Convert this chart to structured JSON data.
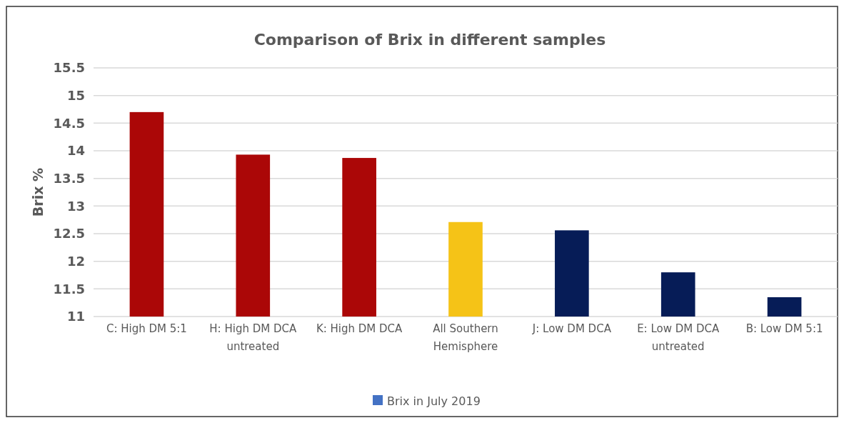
{
  "chart_data": {
    "type": "bar",
    "title": "Comparison of Brix in different samples",
    "ylabel": "Brix %",
    "categories": [
      "C: High DM 5:1",
      "H: High DM DCA untreated",
      "K: High DM DCA",
      "All Southern Hemisphere",
      "J: Low DM DCA",
      "E: Low DM DCA untreated",
      "B: Low DM 5:1"
    ],
    "series": [
      {
        "name": "Brix in July 2019",
        "color": "#4472c4",
        "colors": [
          "#ab0707",
          "#ab0707",
          "#ab0707",
          "#f5c317",
          "#061c57",
          "#061c57",
          "#061c57"
        ],
        "values": [
          14.7,
          13.93,
          13.87,
          12.71,
          12.56,
          11.8,
          11.35
        ]
      }
    ],
    "ylim": [
      11,
      15.5
    ],
    "yticks": [
      11,
      11.5,
      12,
      12.5,
      13,
      13.5,
      14,
      14.5,
      15,
      15.5
    ],
    "grid": "y",
    "legend": "bottom"
  }
}
